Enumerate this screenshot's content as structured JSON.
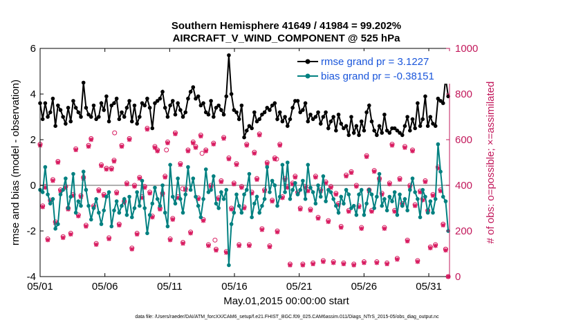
{
  "chart_data": {
    "type": "line",
    "title": "Southern Hemisphere 41649 / 41984 = 99.202%",
    "subtitle": "AIRCRAFT_V_WIND_COMPONENT @ 525 hPa",
    "xlabel": "May.01,2015 00:00:00 start",
    "ylabel": "rmse and bias (model - observation)",
    "y2label": "# of obs: o=possible; ×=assimilated",
    "footer": "data file: /Users/raeder/DAI/ATM_forcXX/CAM6_setup/f.e21.FHIST_BGC.f09_025.CAM6assim.011/Diags_NTrS_2015-05/obs_diag_output.nc",
    "x_ticks": [
      "05/01",
      "05/06",
      "05/11",
      "05/16",
      "05/21",
      "05/26",
      "05/31"
    ],
    "x_range_days": [
      0,
      31.6
    ],
    "ylim": [
      -4,
      6
    ],
    "y_ticks": [
      "-4",
      "-2",
      "0",
      "2",
      "4",
      "6"
    ],
    "y2lim": [
      0,
      1000
    ],
    "y2_ticks": [
      "0",
      "200",
      "400",
      "600",
      "800",
      "1000"
    ],
    "legend": {
      "position": "top-right",
      "entries": [
        "rmse grand pr = 3.1227",
        "bias grand pr = -0.38151"
      ]
    },
    "series": [
      {
        "name": "rmse",
        "color": "#000000",
        "values": [
          3.6,
          2.9,
          3.6,
          3.0,
          3.2,
          3.8,
          2.6,
          3.5,
          3.3,
          3.0,
          2.7,
          3.4,
          2.8,
          3.7,
          3.4,
          3.2,
          3.0,
          4.5,
          3.4,
          3.1,
          3.0,
          3.5,
          2.9,
          3.0,
          3.6,
          3.3,
          3.9,
          2.8,
          3.5,
          3.6,
          3.8,
          2.9,
          3.2,
          3.0,
          3.4,
          3.7,
          2.8,
          3.5,
          2.7,
          3.0,
          3.6,
          3.5,
          3.8,
          3.4,
          2.5,
          3.6,
          3.7,
          3.8,
          4.1,
          3.4,
          3.0,
          3.5,
          3.7,
          3.1,
          3.6,
          3.3,
          3.0,
          3.2,
          3.8,
          4.1,
          4.3,
          3.8,
          3.9,
          3.5,
          3.6,
          3.2,
          3.1,
          3.7,
          3.0,
          3.4,
          3.5,
          3.3,
          3.1,
          3.9,
          5.7,
          4.0,
          3.3,
          3.2,
          2.9,
          3.5,
          2.1,
          2.4,
          2.6,
          2.5,
          3.2,
          2.8,
          2.9,
          3.1,
          3.2,
          3.4,
          3.3,
          3.5,
          3.6,
          2.9,
          3.2,
          2.8,
          3.0,
          2.6,
          2.9,
          3.4,
          3.7,
          3.7,
          3.2,
          3.3,
          3.6,
          2.8,
          3.1,
          2.9,
          3.0,
          3.2,
          2.7,
          3.0,
          3.2,
          2.5,
          2.8,
          3.0,
          2.4,
          3.1,
          2.7,
          2.5,
          2.6,
          2.2,
          3.0,
          2.3,
          2.6,
          2.2,
          2.8,
          2.4,
          3.2,
          3.5,
          2.8,
          2.4,
          2.2,
          2.6,
          2.3,
          3.1,
          2.4,
          2.3,
          2.5,
          2.5,
          2.4,
          2.3,
          2.2,
          2.6,
          3.0,
          2.4,
          2.9,
          2.5,
          3.6,
          2.6,
          2.9,
          3.9,
          2.6,
          3.0,
          2.7,
          2.6,
          3.8,
          3.7,
          3.6,
          4.7,
          3.9
        ]
      },
      {
        "name": "bias",
        "color": "#008080",
        "values": [
          -0.2,
          -0.3,
          0.8,
          -0.4,
          -0.8,
          -0.6,
          -1.9,
          -1.7,
          -0.4,
          -0.2,
          0.3,
          -1.0,
          -0.5,
          0.5,
          -1.2,
          -0.7,
          -0.9,
          0.6,
          -0.2,
          -0.9,
          -1.5,
          -1.0,
          -0.6,
          -1.2,
          -1.7,
          -1.1,
          -0.5,
          -0.3,
          -1.8,
          -1.1,
          -0.7,
          -1.2,
          -0.9,
          -0.6,
          -1.3,
          -0.5,
          -1.4,
          -1.0,
          -0.3,
          -0.9,
          0.2,
          -1.0,
          -2.1,
          -1.3,
          -0.8,
          -0.1,
          -0.6,
          -0.9,
          0.0,
          -1.2,
          -1.8,
          0.9,
          -0.5,
          -0.8,
          0.3,
          -0.6,
          -1.2,
          -0.4,
          0.8,
          -0.2,
          0.3,
          -0.5,
          -0.9,
          -1.4,
          -0.6,
          0.7,
          -0.3,
          -0.2,
          0.4,
          -0.8,
          -1.0,
          -0.3,
          -0.6,
          -0.2,
          -3.5,
          -1.7,
          -1.2,
          -0.4,
          -0.9,
          -1.2,
          -0.4,
          -0.2,
          0.5,
          -1.4,
          -0.8,
          -0.5,
          -1.2,
          -0.9,
          -0.6,
          0.8,
          -0.3,
          0.2,
          0.0,
          -0.9,
          -0.5,
          0.9,
          -0.3,
          1.0,
          -0.6,
          -0.2,
          0.1,
          -0.4,
          -0.2,
          0.2,
          -0.6,
          0.9,
          -0.1,
          -0.3,
          -0.8,
          0.0,
          -0.5,
          0.4,
          -0.7,
          -0.2,
          -0.3,
          -0.6,
          -0.9,
          -1.2,
          -0.5,
          -0.8,
          -0.2,
          -0.4,
          -1.0,
          -0.9,
          -1.3,
          -0.4,
          -0.2,
          -1.3,
          -0.8,
          -0.2,
          -0.4,
          -1.0,
          -0.5,
          0.5,
          -0.9,
          -0.6,
          -1.1,
          -0.5,
          -0.7,
          -0.3,
          -1.3,
          -0.4,
          -0.9,
          -0.6,
          -1.1,
          -0.2,
          0.3,
          -0.3,
          -0.6,
          -1.4,
          -0.2,
          -0.5,
          -1.2,
          -0.7,
          -1.2,
          -0.6,
          1.8,
          0.6,
          -0.5,
          -0.7,
          -2.0
        ]
      },
      {
        "name": "# possible obs (o)",
        "axis": "right",
        "color": "#d81b60",
        "values": [
          580,
          310,
          395,
          165,
          335,
          425,
          240,
          505,
          380,
          175,
          395,
          300,
          190,
          360,
          560,
          270,
          355,
          435,
          225,
          575,
          605,
          310,
          145,
          380,
          490,
          360,
          475,
          170,
          475,
          510,
          370,
          230,
          575,
          330,
          410,
          605,
          125,
          400,
          190,
          435,
          350,
          395,
          650,
          370,
          265,
          570,
          555,
          300,
          365,
          440,
          590,
          165,
          255,
          630,
          350,
          495,
          150,
          385,
          555,
          195,
          590,
          570,
          345,
          620,
          250,
          555,
          140,
          400,
          585,
          120,
          345,
          420,
          610,
          110,
          520,
          300,
          410,
          495,
          140,
          395,
          305,
          580,
          140,
          370,
          545,
          430,
          625,
          210,
          380,
          500,
          135,
          335,
          520,
          200,
          580,
          350,
          430,
          395,
          55,
          410,
          440,
          370,
          300,
          55,
          395,
          380,
          295,
          60,
          440,
          260,
          380,
          70,
          415,
          245,
          395,
          65,
          365,
          320,
          220,
          60,
          445,
          290,
          460,
          55,
          400,
          310,
          215,
          65,
          530,
          380,
          290,
          465,
          65,
          430,
          365,
          215,
          60,
          410,
          580,
          290,
          80,
          430,
          320,
          570,
          160,
          400,
          555,
          315,
          70,
          375,
          340,
          420,
          290,
          130,
          360,
          140,
          480,
          380,
          230,
          120,
          0
        ]
      },
      {
        "name": "# assimilated obs (×)",
        "axis": "right",
        "color": "#d81b60",
        "values": [
          575,
          305,
          390,
          160,
          330,
          420,
          235,
          500,
          375,
          170,
          390,
          295,
          185,
          355,
          555,
          265,
          350,
          430,
          220,
          570,
          600,
          305,
          140,
          375,
          485,
          355,
          470,
          165,
          470,
          505,
          365,
          225,
          570,
          325,
          405,
          600,
          120,
          395,
          185,
          430,
          345,
          390,
          645,
          365,
          260,
          565,
          550,
          295,
          360,
          435,
          585,
          160,
          250,
          625,
          345,
          490,
          145,
          380,
          550,
          190,
          585,
          565,
          340,
          615,
          245,
          550,
          135,
          395,
          580,
          115,
          340,
          415,
          605,
          105,
          515,
          295,
          405,
          490,
          135,
          390,
          300,
          575,
          135,
          365,
          540,
          425,
          620,
          205,
          375,
          495,
          130,
          330,
          515,
          195,
          575,
          345,
          425,
          390,
          50,
          405,
          435,
          365,
          295,
          50,
          390,
          375,
          290,
          55,
          435,
          255,
          375,
          65,
          410,
          240,
          390,
          60,
          360,
          315,
          215,
          55,
          440,
          285,
          455,
          50,
          395,
          305,
          210,
          60,
          525,
          375,
          285,
          460,
          60,
          425,
          360,
          210,
          55,
          405,
          575,
          285,
          75,
          425,
          315,
          565,
          155,
          395,
          550,
          310,
          65,
          370,
          335,
          415,
          285,
          125,
          355,
          135,
          475,
          375,
          225,
          115,
          0
        ]
      }
    ],
    "open_circle_extras": [
      {
        "day": 5.75,
        "count": 630
      },
      {
        "day": 9.75,
        "count": 555
      },
      {
        "day": 11.0,
        "count": 385
      },
      {
        "day": 12.5,
        "count": 540
      },
      {
        "day": 13.5,
        "count": 160
      },
      {
        "day": 18.25,
        "count": 515
      },
      {
        "day": 31.3,
        "count": 120
      }
    ]
  }
}
